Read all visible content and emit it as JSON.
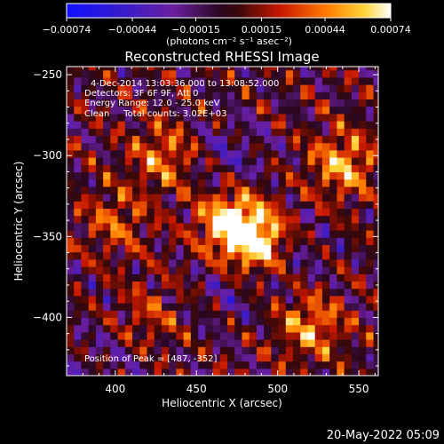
{
  "chart_data": {
    "type": "heatmap",
    "title": "Reconstructed RHESSI Image",
    "xlabel": "Heliocentric X (arcsec)",
    "ylabel": "Heliocentric Y (arcsec)",
    "xlim": [
      370,
      562
    ],
    "ylim": [
      -436,
      -245
    ],
    "xticks": [
      400,
      450,
      500,
      550
    ],
    "yticks": [
      -250,
      -300,
      -350,
      -400
    ],
    "grid": false,
    "colorbar": {
      "min": -0.00074,
      "max": 0.00074,
      "tick_values": [
        -0.00074,
        -0.00044,
        -0.00015,
        0.00015,
        0.00044,
        0.00074
      ],
      "tick_labels": [
        "-0.00074",
        "-0.00044",
        "-0.00015",
        "0.00015",
        "0.00044",
        "0.00074"
      ],
      "units_label": "(photons cm⁻² s⁻¹ asec⁻²)",
      "placement": "top"
    },
    "annotations": [
      "4-Dec-2014 13:03:36.000 to 13:08:52.000",
      "Detectors: 3F 6F 9F, Att 0",
      "Energy Range: 12.0 - 25.0 keV",
      "Clean     Total counts: 3.02E+03"
    ],
    "peak_label": "Position of Peak = [487, -352]",
    "peak": [
      487,
      -352
    ],
    "sources": [
      {
        "x": 487,
        "y": -352,
        "value": 0.00074
      },
      {
        "x": 470,
        "y": -340,
        "value": 0.0006
      },
      {
        "x": 540,
        "y": -305,
        "value": 0.0005
      },
      {
        "x": 520,
        "y": -405,
        "value": 0.00045
      },
      {
        "x": 430,
        "y": -300,
        "value": 0.0004
      },
      {
        "x": 400,
        "y": -340,
        "value": 0.0003
      },
      {
        "x": 420,
        "y": -400,
        "value": 0.00025
      }
    ],
    "footer": "20-May-2022 05:09"
  }
}
